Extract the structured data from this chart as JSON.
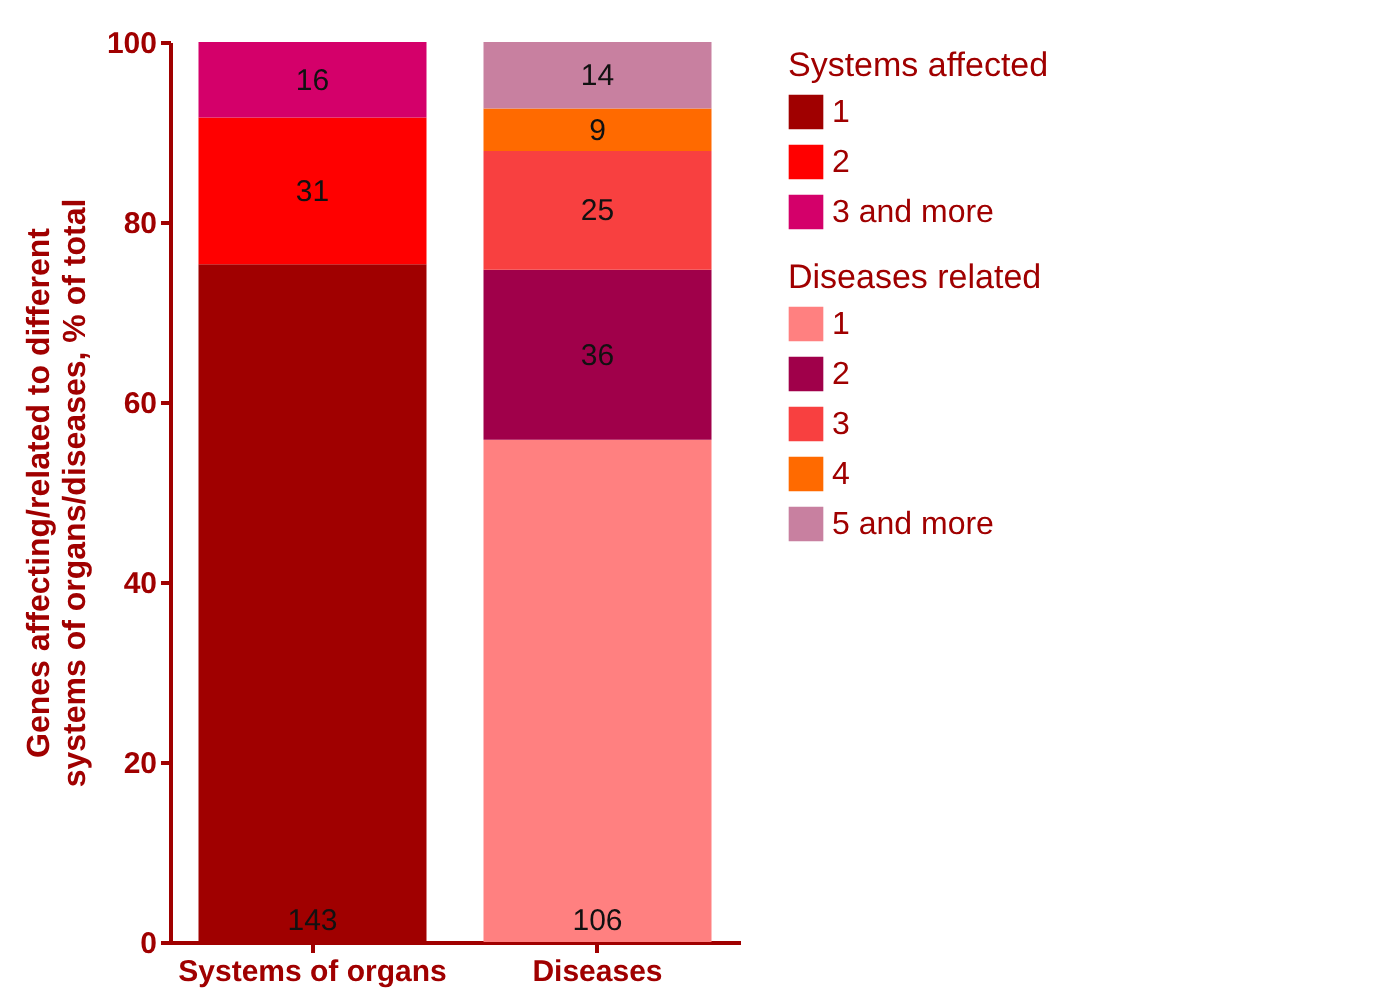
{
  "chart_data": {
    "type": "bar",
    "stacked": true,
    "categories": [
      "Systems of organs",
      "Diseases"
    ],
    "ylabel": "Genes affecting/related to different systems of organs/diseases, % of total",
    "ylim": [
      0,
      100
    ],
    "yticks": [
      0,
      20,
      40,
      60,
      80,
      100
    ],
    "grid": false,
    "legend": "right",
    "legend_title": "Systems affected",
    "annotations": [
      "Diseases related",
      "143",
      "31",
      "16",
      "106",
      "36",
      "25",
      "9",
      "14"
    ],
    "series": [
      {
        "name": "1",
        "color": "#a00000",
        "values": [
          75.3,
          null
        ]
      },
      {
        "name": "2",
        "color": "#ff0000",
        "values": [
          16.3,
          null
        ]
      },
      {
        "name": "3 and more",
        "color": "#d4006a",
        "values": [
          8.4,
          null
        ]
      },
      {
        "name": "1",
        "color": "#ff8080",
        "values": [
          null,
          55.8
        ]
      },
      {
        "name": "2",
        "color": "#a0004a",
        "values": [
          null,
          18.9
        ]
      },
      {
        "name": "3",
        "color": "#f84040",
        "values": [
          null,
          13.2
        ]
      },
      {
        "name": "4",
        "color": "#ff6a00",
        "values": [
          null,
          4.7
        ]
      },
      {
        "name": "5 and more",
        "color": "#c880a0",
        "values": [
          null,
          7.4
        ]
      }
    ]
  }
}
